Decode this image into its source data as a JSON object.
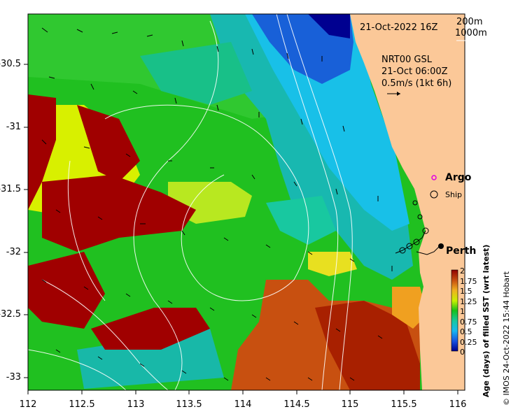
{
  "header": {
    "datetime": "21-Oct-2022 16Z",
    "contour_200": "200m",
    "contour_1000": "1000m"
  },
  "currents": {
    "product": "NRT00 GSL",
    "time": "21-Oct 06:00Z",
    "scale": "0.5m/s (1kt 6h)"
  },
  "legend": {
    "argo": "Argo",
    "ship": "Ship"
  },
  "places": {
    "perth": "Perth"
  },
  "axes": {
    "x_ticks": [
      "112",
      "112.5",
      "113",
      "113.5",
      "114",
      "114.5",
      "115",
      "115.5",
      "116"
    ],
    "y_ticks": [
      "-30.5",
      "-31",
      "-31.5",
      "-32",
      "-32.5",
      "-33"
    ]
  },
  "colorbar": {
    "label": "Age (days) of filled SST (wrt latest)",
    "ticks": [
      "2",
      "1.75",
      "1.5",
      "1.25",
      "1",
      "0.75",
      "0.5",
      "0.25",
      "0"
    ]
  },
  "credit": "© IMOS 24-Oct-2022 15:44 Hobart",
  "colors": {
    "land": "#fbc898",
    "age_0": "#000090",
    "age_0_5": "#18c0e8",
    "age_1": "#18c018",
    "age_1_25": "#d8f000",
    "age_1_5": "#f0a020",
    "age_2": "#a00000"
  }
}
